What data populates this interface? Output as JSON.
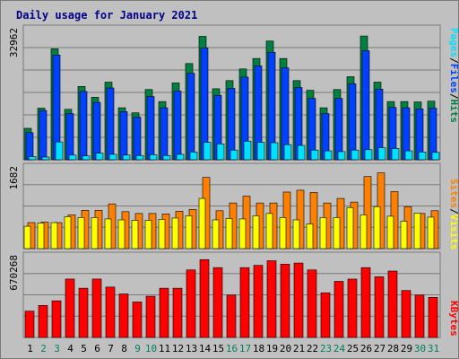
{
  "window": {
    "title": "Daily usage for January 2021"
  },
  "colors": {
    "hits": "#008040",
    "files": "#0040ff",
    "pages": "#00e0ff",
    "visits": "#ffff00",
    "sites": "#ff8000",
    "kbytes": "#ff0000",
    "weekday_label": "#000000",
    "weekend_label": "#00805c",
    "panel_bg": "#c0c0c0",
    "grid": "#7a7a7a"
  },
  "chart_data": [
    {
      "type": "bar",
      "title": "Daily usage for January 2021",
      "ymax_label": "32962",
      "ylim": [
        0,
        32962
      ],
      "legend": [
        "Pages",
        "/",
        "Files",
        "/",
        "Hits"
      ],
      "legend_colors": [
        "#00e0ff",
        "#000000",
        "#0040ff",
        "#000000",
        "#008040"
      ],
      "legend_position": "right",
      "grid": true,
      "categories": [
        "1",
        "2",
        "3",
        "4",
        "5",
        "6",
        "7",
        "8",
        "9",
        "10",
        "11",
        "12",
        "13",
        "14",
        "15",
        "16",
        "17",
        "18",
        "19",
        "20",
        "21",
        "22",
        "23",
        "24",
        "25",
        "26",
        "27",
        "28",
        "29",
        "30",
        "31"
      ],
      "series": [
        {
          "name": "Hits",
          "values": [
            8100,
            13300,
            28600,
            13000,
            18900,
            16100,
            20000,
            13400,
            12100,
            18100,
            15000,
            19800,
            24800,
            31800,
            18300,
            20400,
            23400,
            26100,
            30600,
            26100,
            20400,
            17900,
            13400,
            18100,
            21400,
            31900,
            20000,
            15000,
            15000,
            14900,
            15100
          ]
        },
        {
          "name": "Files",
          "values": [
            7000,
            12700,
            27000,
            11900,
            17600,
            14800,
            18500,
            12400,
            11000,
            16300,
            13400,
            17700,
            22300,
            28800,
            16600,
            18400,
            21300,
            24200,
            27700,
            23700,
            18600,
            15800,
            11900,
            15800,
            19600,
            28100,
            18200,
            13500,
            13400,
            13100,
            13300
          ]
        },
        {
          "name": "Pages",
          "values": [
            800,
            700,
            4600,
            1200,
            1000,
            1700,
            1400,
            1200,
            1100,
            1300,
            1100,
            1400,
            2000,
            4500,
            4100,
            2500,
            4800,
            4500,
            4400,
            3900,
            3700,
            2500,
            2300,
            2100,
            2500,
            2600,
            3100,
            2900,
            2300,
            2000,
            1900
          ]
        }
      ]
    },
    {
      "type": "bar",
      "ymax_label": "1682",
      "ylim": [
        0,
        1682
      ],
      "legend": [
        "Sites",
        "/",
        "Visits"
      ],
      "legend_colors": [
        "#ff8000",
        "#000000",
        "#ffff00"
      ],
      "legend_position": "right",
      "grid": true,
      "categories": [
        "1",
        "2",
        "3",
        "4",
        "5",
        "6",
        "7",
        "8",
        "9",
        "10",
        "11",
        "12",
        "13",
        "14",
        "15",
        "16",
        "17",
        "18",
        "19",
        "20",
        "21",
        "22",
        "23",
        "24",
        "25",
        "26",
        "27",
        "28",
        "29",
        "30",
        "31"
      ],
      "series": [
        {
          "name": "Visits",
          "values": [
            490,
            560,
            570,
            700,
            680,
            680,
            650,
            630,
            620,
            620,
            640,
            670,
            720,
            1100,
            630,
            660,
            650,
            720,
            770,
            680,
            630,
            540,
            680,
            680,
            900,
            740,
            920,
            710,
            600,
            780,
            690
          ]
        },
        {
          "name": "Sites",
          "values": [
            570,
            580,
            570,
            740,
            840,
            840,
            980,
            810,
            770,
            770,
            760,
            820,
            860,
            1560,
            830,
            1000,
            1150,
            1000,
            1000,
            1240,
            1280,
            1230,
            1000,
            1100,
            1020,
            1580,
            1660,
            1250,
            920,
            770,
            830
          ]
        }
      ]
    },
    {
      "type": "bar",
      "ymax_label": "670268",
      "ylim": [
        0,
        670268
      ],
      "legend": [
        "KBytes"
      ],
      "legend_colors": [
        "#ff0000"
      ],
      "legend_position": "right",
      "grid": true,
      "categories": [
        "1",
        "2",
        "3",
        "4",
        "5",
        "6",
        "7",
        "8",
        "9",
        "10",
        "11",
        "12",
        "13",
        "14",
        "15",
        "16",
        "17",
        "18",
        "19",
        "20",
        "21",
        "22",
        "23",
        "24",
        "25",
        "26",
        "27",
        "28",
        "29",
        "30",
        "31"
      ],
      "series": [
        {
          "name": "KBytes",
          "values": [
            230000,
            280000,
            320000,
            510000,
            430000,
            510000,
            440000,
            380000,
            310000,
            360000,
            430000,
            430000,
            590000,
            680000,
            610000,
            370000,
            610000,
            630000,
            670000,
            640000,
            650000,
            590000,
            390000,
            490000,
            510000,
            610000,
            530000,
            580000,
            410000,
            370000,
            350000
          ]
        }
      ]
    }
  ]
}
